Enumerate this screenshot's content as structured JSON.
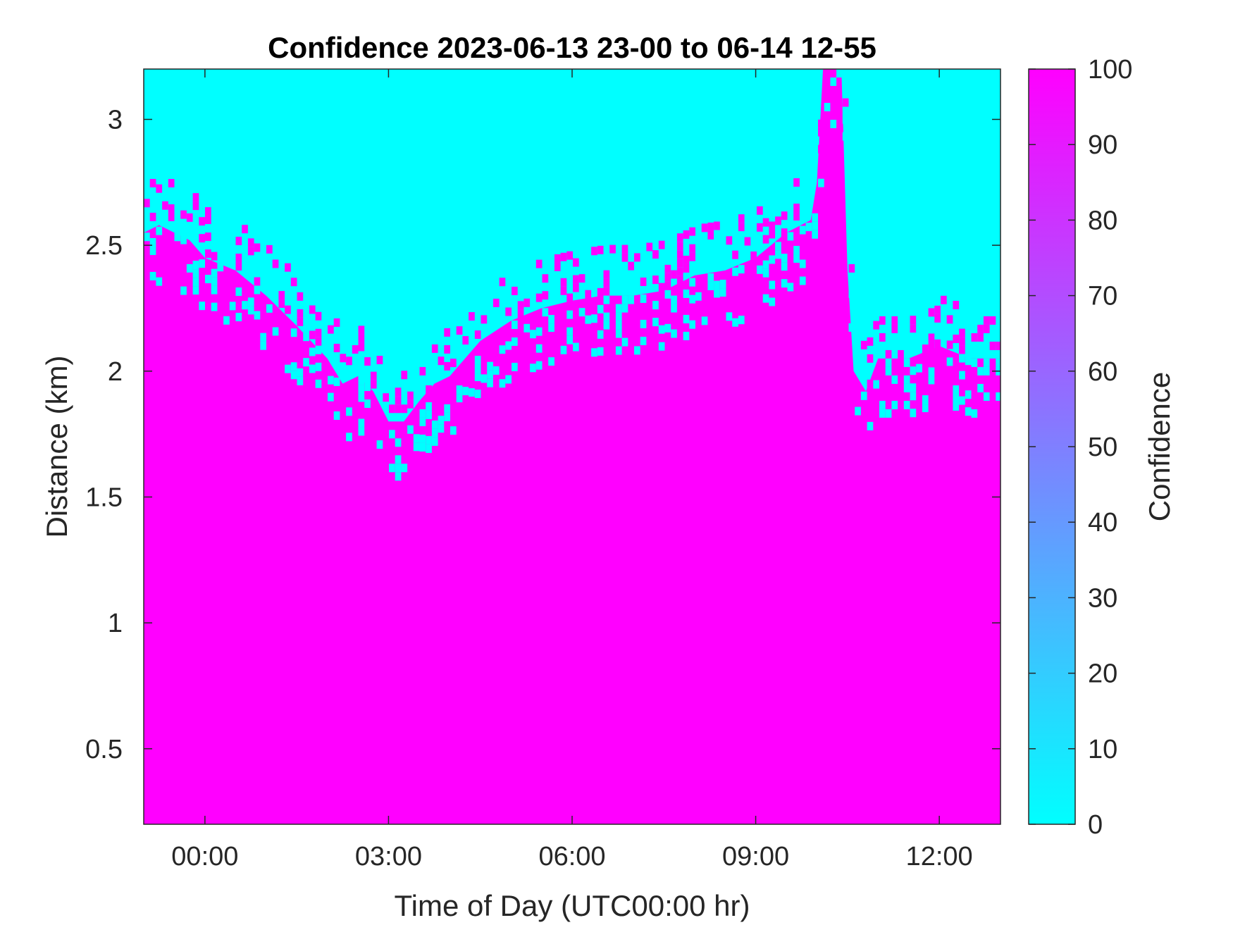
{
  "chart_data": {
    "type": "heatmap",
    "title": "Confidence 2023-06-13 23-00 to 06-14 12-55",
    "xlabel": "Time of Day (UTC00:00 hr)",
    "ylabel": "Distance (km)",
    "xlim_hours": [
      -1.0,
      13.0
    ],
    "ylim": [
      0.2,
      3.2
    ],
    "x_ticks": [
      {
        "value": 0,
        "label": "00:00"
      },
      {
        "value": 3,
        "label": "03:00"
      },
      {
        "value": 6,
        "label": "06:00"
      },
      {
        "value": 9,
        "label": "09:00"
      },
      {
        "value": 12,
        "label": "12:00"
      }
    ],
    "y_ticks": [
      {
        "value": 0.5,
        "label": "0.5"
      },
      {
        "value": 1,
        "label": "1"
      },
      {
        "value": 1.5,
        "label": "1.5"
      },
      {
        "value": 2,
        "label": "2"
      },
      {
        "value": 2.5,
        "label": "2.5"
      },
      {
        "value": 3,
        "label": "3"
      }
    ],
    "colorbar": {
      "label": "Confidence",
      "range": [
        0,
        100
      ],
      "ticks": [
        "0",
        "10",
        "20",
        "30",
        "40",
        "50",
        "60",
        "70",
        "80",
        "90",
        "100"
      ],
      "colormap": "cool",
      "low_color": "#00ffff",
      "high_color": "#ff00ff"
    },
    "boundary": {
      "description_units": "hours, km",
      "points": [
        [
          -1.0,
          2.55
        ],
        [
          -0.75,
          2.58
        ],
        [
          -0.5,
          2.55
        ],
        [
          -0.25,
          2.52
        ],
        [
          0.0,
          2.45
        ],
        [
          0.5,
          2.4
        ],
        [
          1.0,
          2.3
        ],
        [
          1.5,
          2.18
        ],
        [
          2.0,
          2.05
        ],
        [
          2.25,
          1.95
        ],
        [
          2.5,
          1.98
        ],
        [
          2.75,
          1.92
        ],
        [
          3.0,
          1.8
        ],
        [
          3.25,
          1.8
        ],
        [
          3.5,
          1.88
        ],
        [
          3.75,
          1.95
        ],
        [
          4.0,
          1.98
        ],
        [
          4.25,
          2.05
        ],
        [
          4.5,
          2.12
        ],
        [
          5.0,
          2.2
        ],
        [
          5.5,
          2.25
        ],
        [
          6.0,
          2.28
        ],
        [
          6.5,
          2.3
        ],
        [
          7.0,
          2.3
        ],
        [
          7.5,
          2.32
        ],
        [
          8.0,
          2.38
        ],
        [
          8.5,
          2.4
        ],
        [
          9.0,
          2.45
        ],
        [
          9.5,
          2.55
        ],
        [
          9.9,
          2.6
        ],
        [
          10.0,
          2.75
        ],
        [
          10.1,
          3.2
        ],
        [
          10.4,
          3.2
        ],
        [
          10.5,
          2.4
        ],
        [
          10.6,
          2.0
        ],
        [
          10.8,
          1.92
        ],
        [
          11.0,
          2.05
        ],
        [
          11.5,
          2.05
        ],
        [
          12.0,
          2.1
        ],
        [
          12.5,
          2.05
        ],
        [
          13.0,
          2.05
        ]
      ]
    },
    "above_boundary_value": 0,
    "below_boundary_value": 100
  }
}
